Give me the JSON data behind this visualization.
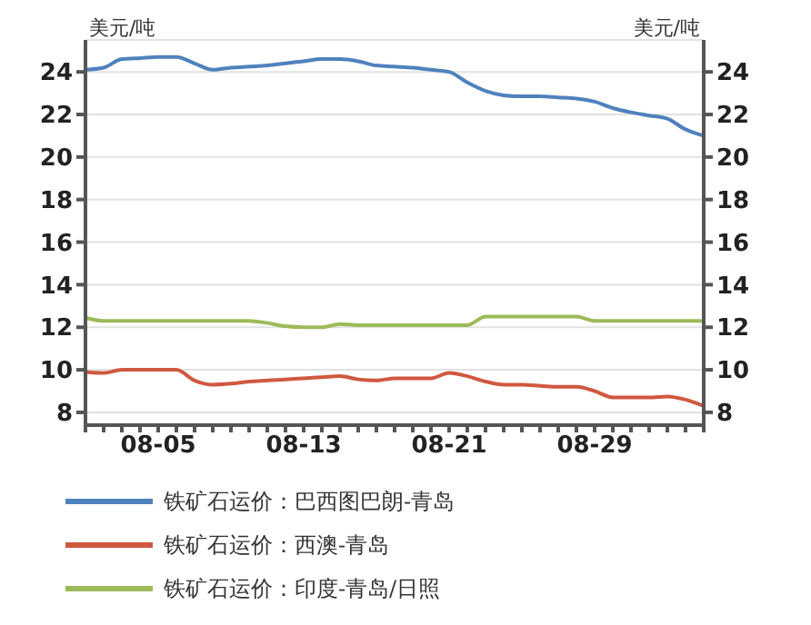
{
  "chart_data": {
    "type": "line",
    "ylabel": "美元/吨",
    "y2label": "美元/吨",
    "categories": [
      null,
      null,
      null,
      null,
      "08-05",
      null,
      null,
      null,
      null,
      null,
      null,
      null,
      "08-13",
      null,
      null,
      null,
      null,
      null,
      null,
      null,
      "08-21",
      null,
      null,
      null,
      null,
      null,
      null,
      null,
      "08-29",
      null,
      null,
      null,
      null,
      null,
      null
    ],
    "series": [
      {
        "name": "铁矿石运价：巴西图巴朗-青岛",
        "color": "#4f81bd",
        "values": [
          24.1,
          24.2,
          24.6,
          24.65,
          24.7,
          24.7,
          24.4,
          24.1,
          24.2,
          24.25,
          24.3,
          24.4,
          24.5,
          24.6,
          24.6,
          24.5,
          24.3,
          24.25,
          24.2,
          24.1,
          24.0,
          23.5,
          23.1,
          22.9,
          22.85,
          22.85,
          22.8,
          22.75,
          22.6,
          22.3,
          22.1,
          21.95,
          21.8,
          21.3,
          21.0
        ]
      },
      {
        "name": "铁矿石运价：西澳-青岛",
        "color": "#d0583f",
        "values": [
          9.9,
          9.85,
          10.0,
          10.0,
          10.0,
          10.0,
          9.5,
          9.3,
          9.35,
          9.45,
          9.5,
          9.55,
          9.6,
          9.65,
          9.7,
          9.55,
          9.5,
          9.6,
          9.6,
          9.6,
          9.85,
          9.7,
          9.45,
          9.3,
          9.3,
          9.25,
          9.2,
          9.2,
          9.0,
          8.7,
          8.7,
          8.7,
          8.75,
          8.6,
          8.3
        ]
      },
      {
        "name": "铁矿石运价：印度-青岛/日照",
        "color": "#9bbb59",
        "values": [
          12.45,
          12.3,
          12.3,
          12.3,
          12.3,
          12.3,
          12.3,
          12.3,
          12.3,
          12.3,
          12.2,
          12.05,
          12.0,
          12.0,
          12.15,
          12.1,
          12.1,
          12.1,
          12.1,
          12.1,
          12.1,
          12.1,
          12.5,
          12.5,
          12.5,
          12.5,
          12.5,
          12.5,
          12.3,
          12.3,
          12.3,
          12.3,
          12.3,
          12.3,
          12.3
        ]
      }
    ],
    "ylim": [
      7.4,
      25.5
    ],
    "yticks": [
      8,
      10,
      12,
      14,
      16,
      18,
      20,
      22,
      24
    ],
    "y2lim": [
      7.4,
      25.5
    ],
    "y2ticks": [
      8,
      10,
      12,
      14,
      16,
      18,
      20,
      22,
      24
    ],
    "grid": "y",
    "legend": "bottom",
    "marker": "none",
    "line_style": "solid"
  }
}
